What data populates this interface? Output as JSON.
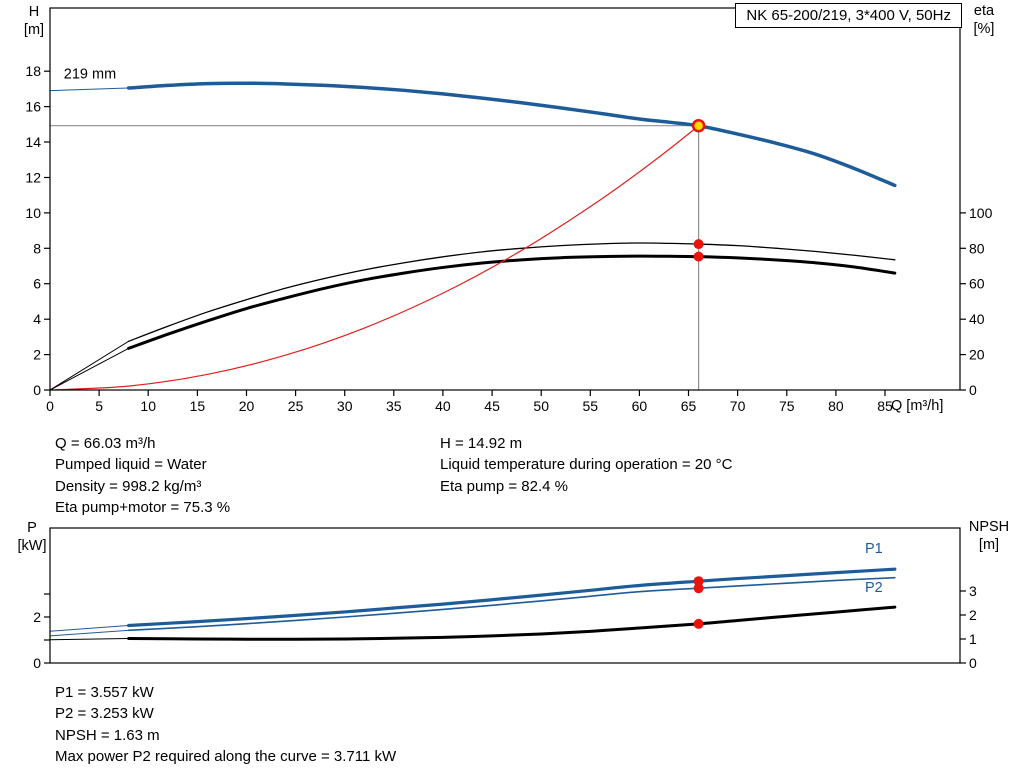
{
  "header": {
    "title": "NK 65-200/219, 3*400 V, 50Hz"
  },
  "top_chart": {
    "impeller_label": "219 mm",
    "axis_labels": {
      "left1": "H",
      "left2": "[m]",
      "right1": "eta",
      "right2": "[%]",
      "x": "Q [m³/h]"
    }
  },
  "bottom_chart": {
    "axis_labels": {
      "left1": "P",
      "left2": "[kW]",
      "right1": "NPSH",
      "right2": "[m]"
    },
    "series_labels": {
      "p1": "P1",
      "p2": "P2"
    }
  },
  "info_top": {
    "left": [
      "Q = 66.03 m³/h",
      "Pumped liquid = Water",
      "Density = 998.2 kg/m³",
      "Eta pump+motor = 75.3 %"
    ],
    "right": [
      "H = 14.92 m",
      "Liquid temperature during operation = 20 °C",
      "Eta pump = 82.4 %"
    ]
  },
  "info_bottom": [
    "P1 = 3.557 kW",
    "P2 = 3.253 kW",
    "NPSH = 1.63 m",
    "Max power P2 required along the curve = 3.711 kW"
  ],
  "colors": {
    "curve_blue": "#1d5c99",
    "curve_black": "#000000",
    "system_red": "#e02020",
    "marker_red": "#e8130c",
    "duty_yellow": "#ffd800",
    "crosshair_gray": "#909090"
  },
  "chart_data": [
    {
      "type": "line",
      "title": "NK 65-200/219, 3*400 V, 50Hz",
      "xlabel": "Q [m³/h]",
      "ylabel_left": "H [m]",
      "ylabel_right": "eta [%]",
      "xlim": [
        0,
        92.6
      ],
      "ylim_left": [
        0,
        21.6
      ],
      "ylim_right": [
        0,
        216
      ],
      "grid": false,
      "x_ticks": [
        0,
        5,
        10,
        15,
        20,
        25,
        30,
        35,
        40,
        45,
        50,
        55,
        60,
        65,
        70,
        75,
        80,
        85
      ],
      "x_tick_labels": [
        "0",
        "5",
        "10",
        "15",
        "20",
        "25",
        "30",
        "35",
        "40",
        "45",
        "50",
        "55",
        "60",
        "65",
        "70",
        "75",
        "80",
        "85"
      ],
      "y_ticks_left": [
        0,
        2,
        4,
        6,
        8,
        10,
        12,
        14,
        16,
        18
      ],
      "y_tick_labels_left": [
        "0",
        "2",
        "4",
        "6",
        "8",
        "10",
        "12",
        "14",
        "16",
        "18"
      ],
      "y_ticks_right": [
        0,
        20,
        40,
        60,
        80,
        100
      ],
      "y_tick_labels_right": [
        "0",
        "20",
        "40",
        "60",
        "80",
        "100"
      ],
      "series": [
        {
          "name": "head-curve-leadin",
          "axis": "left",
          "color": "#1d5c99",
          "width": 1,
          "x": [
            0,
            8
          ],
          "y": [
            16.9,
            17.05
          ]
        },
        {
          "name": "head-curve",
          "axis": "left",
          "color": "#1d5c99",
          "width": 3.5,
          "x": [
            8,
            12,
            16,
            20,
            24,
            28,
            32,
            36,
            40,
            44,
            48,
            52,
            56,
            60,
            63,
            66.03,
            70,
            74,
            78,
            82,
            86
          ],
          "y": [
            17.05,
            17.2,
            17.3,
            17.32,
            17.28,
            17.2,
            17.08,
            16.92,
            16.72,
            16.48,
            16.22,
            15.93,
            15.62,
            15.3,
            15.12,
            14.92,
            14.45,
            13.92,
            13.3,
            12.48,
            11.55
          ]
        },
        {
          "name": "eta-pump-leadin",
          "axis": "left",
          "color": "#000000",
          "width": 1,
          "x": [
            0,
            8
          ],
          "y": [
            0,
            2.75
          ]
        },
        {
          "name": "eta-pump",
          "axis": "left",
          "color": "#000000",
          "width": 1.3,
          "x": [
            8,
            12,
            16,
            20,
            24,
            28,
            32,
            36,
            40,
            44,
            48,
            52,
            56,
            60,
            63,
            66.03,
            70,
            74,
            78,
            82,
            86
          ],
          "y": [
            2.75,
            3.6,
            4.4,
            5.1,
            5.75,
            6.3,
            6.78,
            7.18,
            7.52,
            7.8,
            8.0,
            8.15,
            8.25,
            8.3,
            8.28,
            8.24,
            8.15,
            8.0,
            7.82,
            7.6,
            7.35
          ]
        },
        {
          "name": "eta-pump-motor-leadin",
          "axis": "left",
          "color": "#000000",
          "width": 1,
          "x": [
            0,
            8
          ],
          "y": [
            0,
            2.35
          ]
        },
        {
          "name": "eta-pump-motor",
          "axis": "left",
          "color": "#000000",
          "width": 3,
          "x": [
            8,
            12,
            16,
            20,
            24,
            28,
            32,
            36,
            40,
            44,
            48,
            52,
            56,
            60,
            63,
            66.03,
            70,
            74,
            78,
            82,
            86
          ],
          "y": [
            2.35,
            3.15,
            3.9,
            4.6,
            5.2,
            5.75,
            6.22,
            6.6,
            6.92,
            7.17,
            7.35,
            7.47,
            7.53,
            7.56,
            7.55,
            7.53,
            7.46,
            7.34,
            7.18,
            6.94,
            6.6
          ]
        },
        {
          "name": "system-curve",
          "axis": "left",
          "color": "#e02020",
          "width": 1.2,
          "x": [
            0,
            8,
            16,
            24,
            32,
            40,
            48,
            56,
            62,
            66.03
          ],
          "y": [
            0,
            0.22,
            0.88,
            1.97,
            3.5,
            5.47,
            7.88,
            10.73,
            13.15,
            14.92
          ]
        }
      ],
      "crosshair": {
        "x": 66.03,
        "y": 14.92
      },
      "markers": [
        {
          "name": "eta-pump-point",
          "x": 66.03,
          "y": 8.24,
          "axis": "left",
          "r": 5,
          "fill": "#e8130c"
        },
        {
          "name": "eta-pump-motor-point",
          "x": 66.03,
          "y": 7.53,
          "axis": "left",
          "r": 5,
          "fill": "#e8130c"
        },
        {
          "name": "duty-point",
          "x": 66.03,
          "y": 14.92,
          "axis": "left",
          "r": 5.5,
          "fill": "#ffd800",
          "stroke": "#e8130c",
          "stroke_width": 2.5
        }
      ],
      "annotations": [
        {
          "text": "219 mm",
          "x": 1.4,
          "y": 17.6
        }
      ]
    },
    {
      "type": "line",
      "title": "",
      "xlabel": "",
      "ylabel_left": "P [kW]",
      "ylabel_right": "NPSH [m]",
      "xlim": [
        0,
        92.6
      ],
      "ylim_left": [
        0,
        5.87
      ],
      "ylim_right": [
        0,
        5.63
      ],
      "grid": false,
      "x_ticks": [],
      "x_tick_labels": [],
      "y_ticks_left": [
        0,
        1,
        2,
        3
      ],
      "y_tick_labels_left": [
        "0",
        "",
        "2",
        ""
      ],
      "y_ticks_right": [
        0,
        1,
        2,
        3
      ],
      "y_tick_labels_right": [
        "0",
        "1",
        "2",
        "3"
      ],
      "series": [
        {
          "name": "p1-leadin",
          "axis": "left",
          "color": "#1d5c99",
          "width": 1,
          "x": [
            0,
            8
          ],
          "y": [
            1.38,
            1.63
          ]
        },
        {
          "name": "p1-power",
          "axis": "left",
          "color": "#1d5c99",
          "width": 3.2,
          "x": [
            8,
            15,
            20,
            25,
            30,
            35,
            40,
            45,
            50,
            55,
            60,
            66.03,
            70,
            75,
            80,
            86
          ],
          "y": [
            1.63,
            1.8,
            1.93,
            2.07,
            2.22,
            2.39,
            2.56,
            2.75,
            2.95,
            3.16,
            3.37,
            3.557,
            3.67,
            3.8,
            3.93,
            4.08
          ]
        },
        {
          "name": "p2-leadin",
          "axis": "left",
          "color": "#1d5c99",
          "width": 1,
          "x": [
            0,
            8
          ],
          "y": [
            1.18,
            1.42
          ]
        },
        {
          "name": "p2-power",
          "axis": "left",
          "color": "#1d5c99",
          "width": 1.6,
          "x": [
            8,
            15,
            20,
            25,
            30,
            35,
            40,
            45,
            50,
            55,
            60,
            66.03,
            70,
            75,
            80,
            86
          ],
          "y": [
            1.42,
            1.58,
            1.71,
            1.85,
            2.0,
            2.16,
            2.33,
            2.51,
            2.7,
            2.9,
            3.1,
            3.253,
            3.35,
            3.47,
            3.59,
            3.71
          ]
        },
        {
          "name": "npsh-leadin",
          "axis": "right",
          "color": "#000000",
          "width": 1,
          "x": [
            0,
            8
          ],
          "y": [
            0.97,
            1.02
          ]
        },
        {
          "name": "npsh-curve",
          "axis": "right",
          "color": "#000000",
          "width": 3,
          "x": [
            8,
            15,
            20,
            25,
            30,
            35,
            40,
            45,
            50,
            55,
            60,
            66.03,
            70,
            75,
            80,
            86
          ],
          "y": [
            1.02,
            1.0,
            0.99,
            0.99,
            1.0,
            1.03,
            1.07,
            1.13,
            1.21,
            1.32,
            1.46,
            1.63,
            1.77,
            1.95,
            2.12,
            2.33
          ]
        }
      ],
      "markers": [
        {
          "name": "p1-point",
          "x": 66.03,
          "y": 3.557,
          "axis": "left",
          "r": 5,
          "fill": "#e8130c"
        },
        {
          "name": "p2-point",
          "x": 66.03,
          "y": 3.253,
          "axis": "left",
          "r": 5,
          "fill": "#e8130c"
        },
        {
          "name": "npsh-point",
          "x": 66.03,
          "y": 1.63,
          "axis": "right",
          "r": 5,
          "fill": "#e8130c"
        }
      ],
      "annotations": []
    }
  ]
}
